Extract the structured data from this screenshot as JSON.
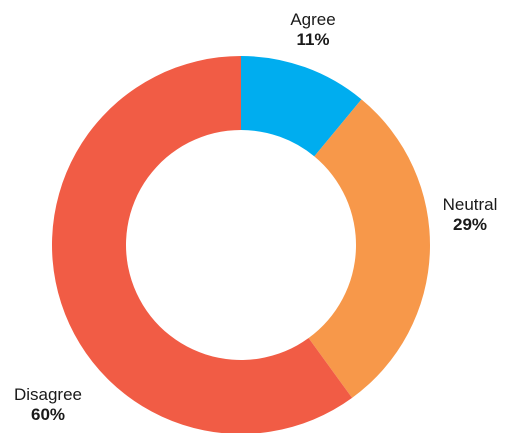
{
  "chart_data": {
    "type": "pie",
    "style": "donut",
    "title": "",
    "categories": [
      "Agree",
      "Neutral",
      "Disagree"
    ],
    "values": [
      11,
      29,
      60
    ],
    "value_labels": [
      "11%",
      "29%",
      "60%"
    ],
    "colors": [
      "#00adef",
      "#f7984a",
      "#f15c45"
    ],
    "legend": "none",
    "start_angle": "12 o'clock",
    "direction": "clockwise"
  }
}
